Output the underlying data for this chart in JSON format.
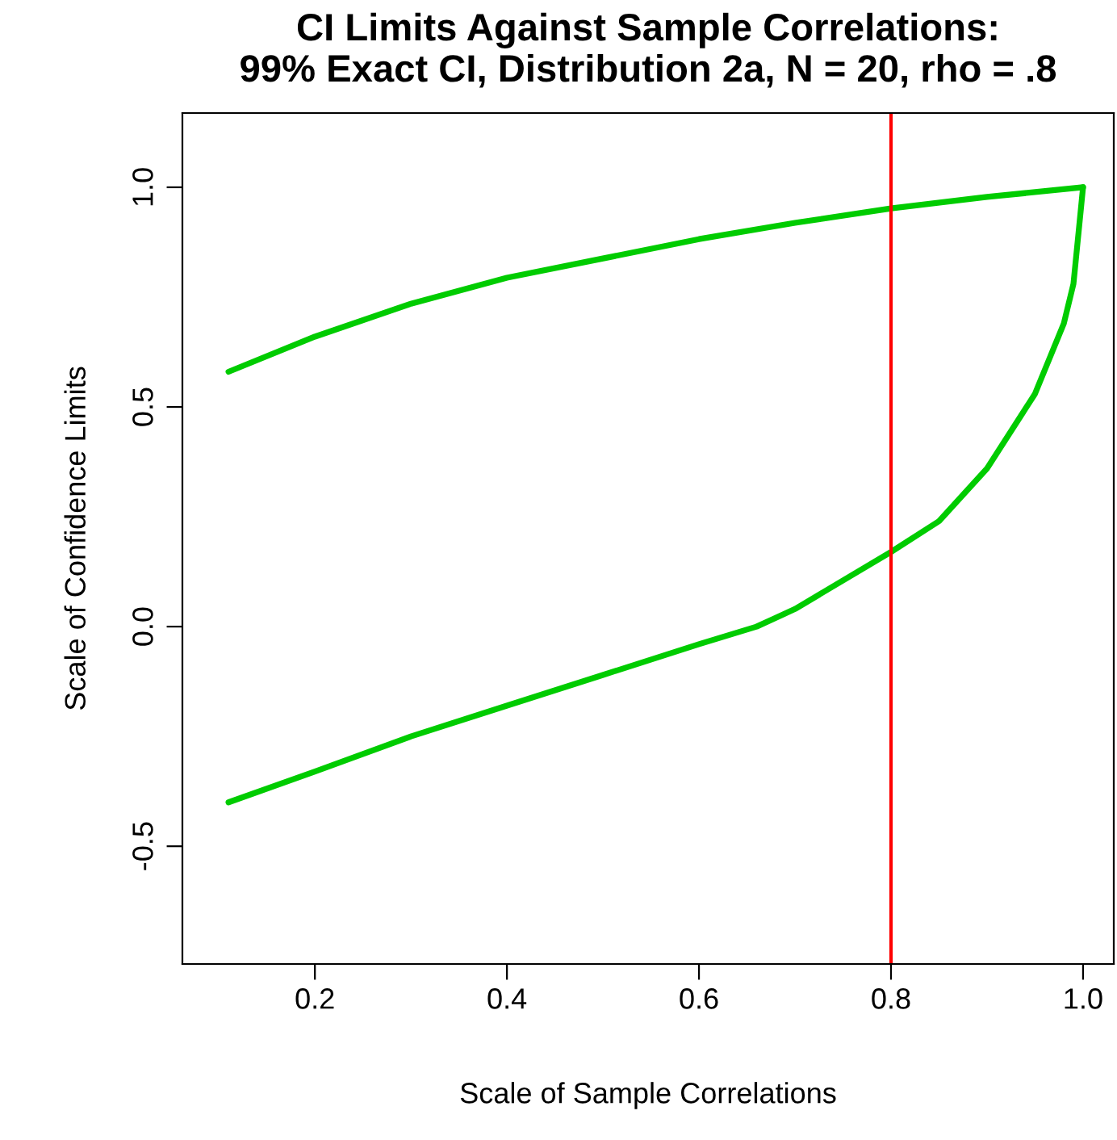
{
  "chart_data": {
    "type": "line",
    "title": "CI Limits Against Sample Correlations:\n99% Exact CI, Distribution 2a, N = 20, rho = .8",
    "xlabel": "Scale of Sample Correlations",
    "ylabel": "Scale of Confidence Limits",
    "series": [
      {
        "color": "#00cc00",
        "x": [
          0.11,
          0.2,
          0.3,
          0.4,
          0.5,
          0.6,
          0.7,
          0.8,
          0.9,
          1.0
        ],
        "values": [
          0.58,
          0.66,
          0.735,
          0.794,
          0.838,
          0.882,
          0.919,
          0.952,
          0.978,
          1.0
        ]
      },
      {
        "color": "#00cc00",
        "x": [
          0.11,
          0.2,
          0.3,
          0.4,
          0.5,
          0.6,
          0.66,
          0.7,
          0.8,
          0.85,
          0.9,
          0.95,
          0.98,
          0.99,
          1.0
        ],
        "values": [
          -0.4,
          -0.33,
          -0.25,
          -0.18,
          -0.11,
          -0.04,
          0.0,
          0.04,
          0.17,
          0.24,
          0.36,
          0.53,
          0.69,
          0.78,
          1.0
        ]
      }
    ],
    "ref_lines": [
      {
        "axis": "x",
        "value": 0.8,
        "color": "#ff0000"
      }
    ],
    "xlim": [
      0.062,
      1.032
    ],
    "ylim": [
      -0.768,
      1.169
    ],
    "xticks": [
      {
        "value": 0.2,
        "label": "0.2"
      },
      {
        "value": 0.4,
        "label": "0.4"
      },
      {
        "value": 0.6,
        "label": "0.6"
      },
      {
        "value": 0.8,
        "label": "0.8"
      },
      {
        "value": 1.0,
        "label": "1.0"
      }
    ],
    "yticks": [
      {
        "value": -0.5,
        "label": "-0.5"
      },
      {
        "value": 0.0,
        "label": "0.0"
      },
      {
        "value": 0.5,
        "label": "0.5"
      },
      {
        "value": 1.0,
        "label": "1.0"
      }
    ],
    "grid": false
  }
}
